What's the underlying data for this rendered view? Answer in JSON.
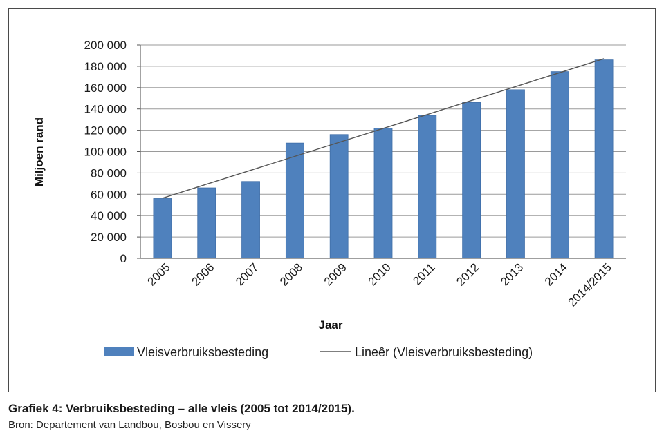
{
  "caption": {
    "title": "Grafiek 4: Verbruiksbesteding – alle vleis (2005 tot 2014/2015).",
    "source": "Bron: Departement van Landbou, Bosbou en Vissery"
  },
  "chart_data": {
    "type": "bar",
    "title": "",
    "xlabel": "Jaar",
    "ylabel": "Miljoen rand",
    "categories": [
      "2005",
      "2006",
      "2007",
      "2008",
      "2009",
      "2010",
      "2011",
      "2012",
      "2013",
      "2014",
      "2014/2015"
    ],
    "series": [
      {
        "name": "Vleisverbruiksbesteding",
        "values": [
          56000,
          66000,
          72000,
          108000,
          116000,
          122000,
          134000,
          146000,
          158000,
          175000,
          186000
        ]
      }
    ],
    "trendline": {
      "name": "Lineêr (Vleisverbruiksbesteding)",
      "type": "linear"
    },
    "ylim": [
      0,
      200000
    ],
    "yticks": [
      0,
      20000,
      40000,
      60000,
      80000,
      100000,
      120000,
      140000,
      160000,
      180000,
      200000
    ],
    "ytick_labels": [
      "0",
      "20 000",
      "40 000",
      "60 000",
      "80 000",
      "100 000",
      "120 000",
      "140 000",
      "160 000",
      "180 000",
      "200 000"
    ],
    "grid": true,
    "legend": "bottom",
    "colors": {
      "bar": "#4f81bd",
      "bar_edge": "#3f6ea8",
      "trend": "#555555",
      "grid": "#9a9a9a"
    }
  }
}
